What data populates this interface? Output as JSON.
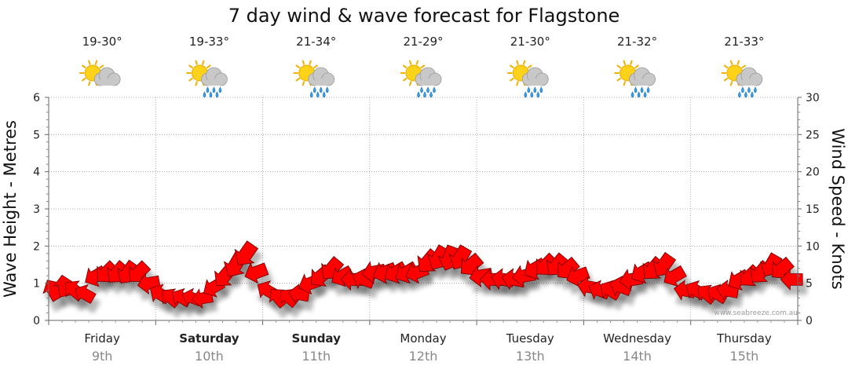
{
  "chart_data": {
    "type": "line",
    "title": "7 day wind & wave forecast for Flagstone",
    "ylabel_left": "Wave Height - Metres",
    "ylabel_right": "Wind Speed - Knots",
    "y_left_range": [
      0,
      6
    ],
    "y_right_range": [
      0,
      30
    ],
    "y_left_ticks": [
      "0",
      "1",
      "2",
      "3",
      "4",
      "5",
      "6"
    ],
    "y_right_ticks": [
      "0",
      "5",
      "10",
      "15",
      "20",
      "25",
      "30"
    ],
    "grid": true,
    "days": [
      {
        "name": "Friday",
        "date": "9th",
        "bold": false,
        "temp": "19-30°",
        "icon": "sun-cloud-icon"
      },
      {
        "name": "Saturday",
        "date": "10th",
        "bold": true,
        "temp": "19-33°",
        "icon": "sun-cloud-rain-icon"
      },
      {
        "name": "Sunday",
        "date": "11th",
        "bold": true,
        "temp": "21-34°",
        "icon": "sun-cloud-rain-icon"
      },
      {
        "name": "Monday",
        "date": "12th",
        "bold": false,
        "temp": "21-29°",
        "icon": "sun-cloud-rain-icon"
      },
      {
        "name": "Tuesday",
        "date": "13th",
        "bold": false,
        "temp": "21-30°",
        "icon": "sun-cloud-rain-icon"
      },
      {
        "name": "Wednesday",
        "date": "14th",
        "bold": false,
        "temp": "21-32°",
        "icon": "sun-cloud-rain-icon"
      },
      {
        "name": "Thursday",
        "date": "15th",
        "bold": false,
        "temp": "21-33°",
        "icon": "sun-cloud-rain-icon"
      }
    ],
    "wind_series": {
      "name": "Wind Speed - Knots",
      "color": "#ff0000",
      "speed_knots": [
        4.5,
        4.0,
        4.8,
        3.2,
        5.5,
        6.5,
        6.5,
        7.0,
        6.2,
        5.0,
        4.0,
        3.3,
        2.8,
        2.5,
        3.3,
        4.2,
        6.0,
        7.8,
        8.2,
        6.0,
        3.5,
        2.8,
        2.5,
        3.5,
        5.5,
        6.5,
        7.0,
        5.5,
        5.5,
        5.2,
        6.5,
        7.0,
        6.8,
        6.5,
        5.8,
        7.8,
        8.0,
        8.2,
        7.8,
        7.2,
        5.8,
        5.5,
        5.5,
        5.5,
        6.0,
        6.5,
        6.8,
        6.8,
        6.5,
        5.5,
        4.5,
        4.0,
        4.5,
        5.0,
        6.0,
        6.5,
        7.2,
        7.5,
        5.5,
        4.0,
        3.8,
        3.5,
        3.8,
        4.5,
        5.5,
        6.0,
        6.5,
        6.8,
        6.5,
        5.0
      ],
      "wave_height_m": [
        0.8,
        0.9,
        0.8,
        0.7,
        1.2,
        1.3,
        1.3,
        1.3,
        1.3,
        1.0,
        0.7,
        0.6,
        0.6,
        0.6,
        0.6,
        0.9,
        1.2,
        1.5,
        1.8,
        1.3,
        0.8,
        0.6,
        0.6,
        0.7,
        1.0,
        1.2,
        1.4,
        1.2,
        1.1,
        1.1,
        1.3,
        1.3,
        1.3,
        1.3,
        1.3,
        1.6,
        1.7,
        1.7,
        1.7,
        1.5,
        1.2,
        1.1,
        1.1,
        1.1,
        1.2,
        1.4,
        1.5,
        1.5,
        1.4,
        1.2,
        0.9,
        0.8,
        0.8,
        0.9,
        1.1,
        1.3,
        1.4,
        1.5,
        1.2,
        0.8,
        0.8,
        0.7,
        0.7,
        0.8,
        1.1,
        1.2,
        1.3,
        1.5,
        1.4,
        1.1
      ],
      "direction_deg": [
        150,
        170,
        130,
        120,
        60,
        45,
        40,
        35,
        45,
        80,
        120,
        130,
        120,
        110,
        80,
        60,
        40,
        30,
        35,
        70,
        120,
        140,
        130,
        100,
        70,
        50,
        40,
        60,
        90,
        110,
        80,
        70,
        60,
        60,
        70,
        40,
        30,
        20,
        30,
        50,
        80,
        90,
        100,
        100,
        80,
        60,
        45,
        40,
        50,
        70,
        100,
        110,
        120,
        110,
        80,
        60,
        40,
        35,
        60,
        100,
        120,
        130,
        120,
        100,
        60,
        45,
        40,
        30,
        50,
        90
      ]
    }
  },
  "credit": "www.seabreeze.com.au"
}
